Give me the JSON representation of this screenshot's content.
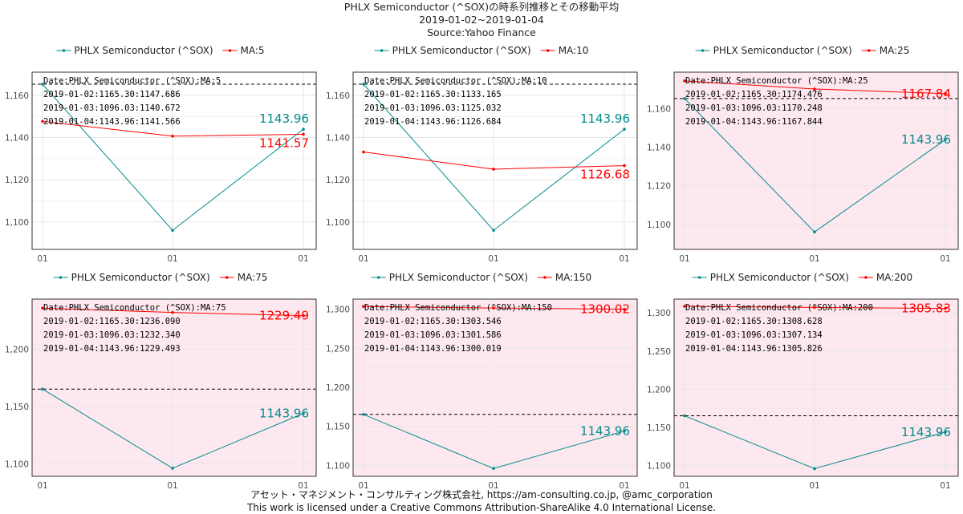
{
  "title": {
    "line1": "PHLX Semiconductor (^SOX)の時系列推移とその移動平均",
    "line2": "2019-01-02~2019-01-04",
    "line3": "Source:Yahoo Finance"
  },
  "footer": {
    "line1": "アセット・マネジメント・コンサルティング株式会社, https://am-consulting.co.jp, @amc_corporation",
    "line2": "This work is licensed under a Creative Commons Attribution-ShareAlike 4.0 International License."
  },
  "colors": {
    "price": "#008B8B",
    "ma": "#FF0000",
    "highlight_bg": "#FDE8F0",
    "grid": "#E6E6E6",
    "reference_line": "#000000"
  },
  "chart_data": [
    {
      "type": "line",
      "x": [
        "2019-01-02",
        "2019-01-03",
        "2019-01-04"
      ],
      "x_tick_labels": [
        "01",
        "01",
        "01"
      ],
      "series": [
        {
          "name": "PHLX Semiconductor (^SOX)",
          "values": [
            1165.3,
            1096.03,
            1143.96
          ]
        },
        {
          "name": "MA:5",
          "values": [
            1147.686,
            1140.672,
            1141.566
          ]
        }
      ],
      "ylim": [
        1087,
        1171
      ],
      "yticks": [
        1100,
        1120,
        1140,
        1160
      ],
      "ytick_labels": [
        "1,100",
        "1,120",
        "1,140",
        "1,160"
      ],
      "reference_line": 1165.3,
      "last_price_label": "1143.96",
      "last_ma_label": "1141.57",
      "annotation": [
        "Date:PHLX Semiconductor (^SOX):MA:5",
        "2019-01-02:1165.30:1147.686",
        "2019-01-03:1096.03:1140.672",
        "2019-01-04:1143.96:1141.566"
      ],
      "highlight": false,
      "grid": true,
      "legend_position": "top"
    },
    {
      "type": "line",
      "x": [
        "2019-01-02",
        "2019-01-03",
        "2019-01-04"
      ],
      "x_tick_labels": [
        "01",
        "01",
        "01"
      ],
      "series": [
        {
          "name": "PHLX Semiconductor (^SOX)",
          "values": [
            1165.3,
            1096.03,
            1143.96
          ]
        },
        {
          "name": "MA:10",
          "values": [
            1133.165,
            1125.032,
            1126.684
          ]
        }
      ],
      "ylim": [
        1087,
        1171
      ],
      "yticks": [
        1100,
        1120,
        1140,
        1160
      ],
      "ytick_labels": [
        "1,100",
        "1,120",
        "1,140",
        "1,160"
      ],
      "reference_line": 1165.3,
      "last_price_label": "1143.96",
      "last_ma_label": "1126.68",
      "annotation": [
        "Date:PHLX Semiconductor (^SOX):MA:10",
        "2019-01-02:1165.30:1133.165",
        "2019-01-03:1096.03:1125.032",
        "2019-01-04:1143.96:1126.684"
      ],
      "highlight": false,
      "grid": true,
      "legend_position": "top"
    },
    {
      "type": "line",
      "x": [
        "2019-01-02",
        "2019-01-03",
        "2019-01-04"
      ],
      "x_tick_labels": [
        "01",
        "01",
        "01"
      ],
      "series": [
        {
          "name": "PHLX Semiconductor (^SOX)",
          "values": [
            1165.3,
            1096.03,
            1143.96
          ]
        },
        {
          "name": "MA:25",
          "values": [
            1174.476,
            1170.248,
            1167.844
          ]
        }
      ],
      "ylim": [
        1087,
        1179
      ],
      "yticks": [
        1100,
        1120,
        1140,
        1160
      ],
      "ytick_labels": [
        "1,100",
        "1,120",
        "1,140",
        "1,160"
      ],
      "reference_line": 1165.3,
      "last_price_label": "1143.96",
      "last_ma_label": "1167.84",
      "annotation": [
        "Date:PHLX Semiconductor (^SOX):MA:25",
        "2019-01-02:1165.30:1174.476",
        "2019-01-03:1096.03:1170.248",
        "2019-01-04:1143.96:1167.844"
      ],
      "highlight": true,
      "grid": true,
      "legend_position": "top"
    },
    {
      "type": "line",
      "x": [
        "2019-01-02",
        "2019-01-03",
        "2019-01-04"
      ],
      "x_tick_labels": [
        "01",
        "01",
        "01"
      ],
      "series": [
        {
          "name": "PHLX Semiconductor (^SOX)",
          "values": [
            1165.3,
            1096.03,
            1143.96
          ]
        },
        {
          "name": "MA:75",
          "values": [
            1236.09,
            1232.34,
            1229.493
          ]
        }
      ],
      "ylim": [
        1089,
        1244
      ],
      "yticks": [
        1100,
        1150,
        1200
      ],
      "ytick_labels": [
        "1,100",
        "1,150",
        "1,200"
      ],
      "reference_line": 1165.3,
      "last_price_label": "1143.96",
      "last_ma_label": "1229.49",
      "annotation": [
        "Date:PHLX Semiconductor (^SOX):MA:75",
        "2019-01-02:1165.30:1236.090",
        "2019-01-03:1096.03:1232.340",
        "2019-01-04:1143.96:1229.493"
      ],
      "highlight": true,
      "grid": true,
      "legend_position": "top"
    },
    {
      "type": "line",
      "x": [
        "2019-01-02",
        "2019-01-03",
        "2019-01-04"
      ],
      "x_tick_labels": [
        "01",
        "01",
        "01"
      ],
      "series": [
        {
          "name": "PHLX Semiconductor (^SOX)",
          "values": [
            1165.3,
            1096.03,
            1143.96
          ]
        },
        {
          "name": "MA:150",
          "values": [
            1303.546,
            1301.586,
            1300.019
          ]
        }
      ],
      "ylim": [
        1086,
        1313
      ],
      "yticks": [
        1100,
        1150,
        1200,
        1250,
        1300
      ],
      "ytick_labels": [
        "1,100",
        "1,150",
        "1,200",
        "1,250",
        "1,300"
      ],
      "reference_line": 1165.3,
      "last_price_label": "1143.96",
      "last_ma_label": "1300.02",
      "annotation": [
        "Date:PHLX Semiconductor (^SOX):MA:150",
        "2019-01-02:1165.30:1303.546",
        "2019-01-03:1096.03:1301.586",
        "2019-01-04:1143.96:1300.019"
      ],
      "highlight": true,
      "grid": true,
      "legend_position": "top"
    },
    {
      "type": "line",
      "x": [
        "2019-01-02",
        "2019-01-03",
        "2019-01-04"
      ],
      "x_tick_labels": [
        "01",
        "01",
        "01"
      ],
      "series": [
        {
          "name": "PHLX Semiconductor (^SOX)",
          "values": [
            1165.3,
            1096.03,
            1143.96
          ]
        },
        {
          "name": "MA:200",
          "values": [
            1308.628,
            1307.134,
            1305.826
          ]
        }
      ],
      "ylim": [
        1086,
        1318
      ],
      "yticks": [
        1100,
        1150,
        1200,
        1250,
        1300
      ],
      "ytick_labels": [
        "1,100",
        "1,150",
        "1,200",
        "1,250",
        "1,300"
      ],
      "reference_line": 1165.3,
      "last_price_label": "1143.96",
      "last_ma_label": "1305.83",
      "annotation": [
        "Date:PHLX Semiconductor (^SOX):MA:200",
        "2019-01-02:1165.30:1308.628",
        "2019-01-03:1096.03:1307.134",
        "2019-01-04:1143.96:1305.826"
      ],
      "highlight": true,
      "grid": true,
      "legend_position": "top"
    }
  ]
}
